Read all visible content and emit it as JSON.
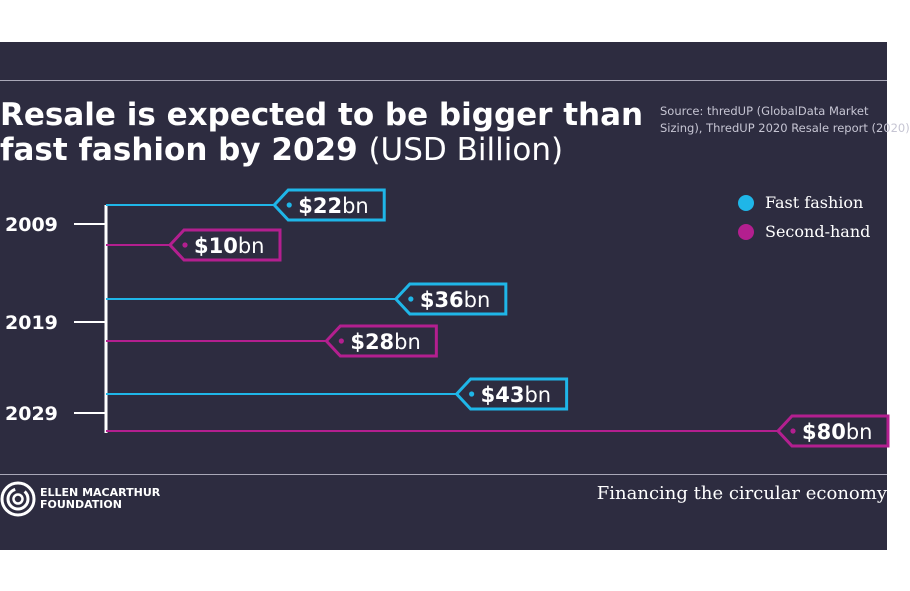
{
  "header": {
    "title_bold_1": "Resale is expected to be bigger than",
    "title_bold_2": "fast fashion by 2029",
    "title_light": "(USD Billion)",
    "source_line_1": "Source: thredUP (GlobalData Market",
    "source_line_2": "Sizing), ThredUP 2020 Resale report (2020)"
  },
  "chart_data": {
    "type": "bar",
    "orientation": "horizontal",
    "title": "Resale is expected to be bigger than fast fashion by 2029 (USD Billion)",
    "categories": [
      "2009",
      "2019",
      "2029"
    ],
    "series": [
      {
        "name": "Fast fashion",
        "values": [
          22,
          36,
          43
        ],
        "labels": [
          "$22bn",
          "$36bn",
          "$43bn"
        ]
      },
      {
        "name": "Second-hand",
        "values": [
          10,
          28,
          80
        ],
        "labels": [
          "$10bn",
          "$28bn",
          "$80bn"
        ]
      }
    ],
    "xlim": [
      0,
      80
    ],
    "grid": false,
    "legend_position": "top-right"
  },
  "colors": {
    "fast_fashion": "#1fb6e8",
    "second_hand": "#b31f8f",
    "background": "#2d2c40"
  },
  "legend": [
    {
      "label": "Fast fashion"
    },
    {
      "label": "Second-hand"
    }
  ],
  "footer": {
    "logo_line_1": "ELLEN MACARTHUR",
    "logo_line_2": "FOUNDATION",
    "tagline": "Financing the circular economy"
  }
}
